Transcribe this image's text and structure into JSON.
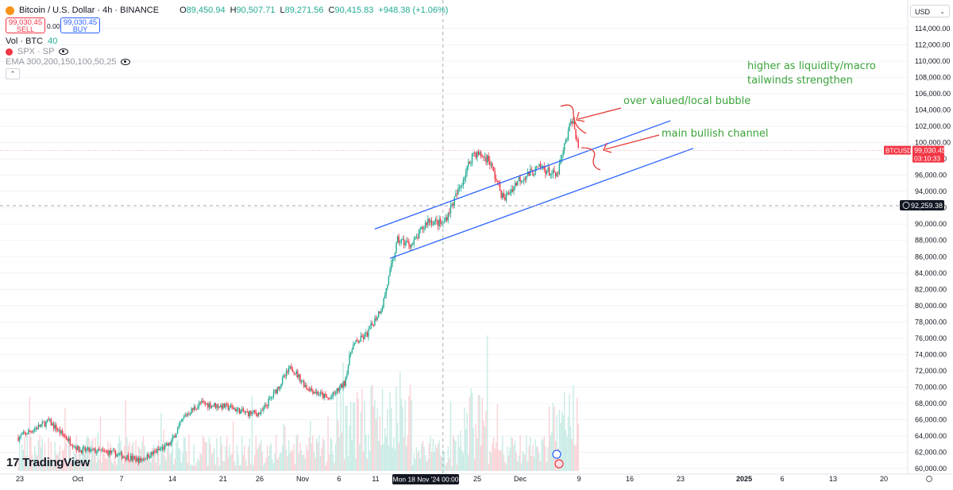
{
  "header": {
    "symbol_title": "Bitcoin / U.S. Dollar · 4h · BINANCE",
    "ohlc": {
      "o_label": "O",
      "o_value": "89,450.94",
      "h_label": "H",
      "h_value": "90,507.71",
      "l_label": "L",
      "l_value": "89,271.56",
      "c_label": "C",
      "c_value": "90,415.83",
      "change": "+948.38 (+1.06%)"
    },
    "sell_price": "99,030.45",
    "sell_label": "SELL",
    "spread": "0.00",
    "buy_price": "99,030.45",
    "buy_label": "BUY",
    "vol_label": "Vol · BTC",
    "vol_value": "40",
    "compare_label": "SPX · SP",
    "ema_label": "EMA 300,200,150,100,50,25"
  },
  "currency_select": "USD",
  "price_axis": {
    "ticks": [
      "114,000.00",
      "112,000.00",
      "110,000.00",
      "108,000.00",
      "106,000.00",
      "104,000.00",
      "102,000.00",
      "100,000.00",
      "98,000.00",
      "96,000.00",
      "94,000.00",
      "92,000.00",
      "90,000.00",
      "88,000.00",
      "86,000.00",
      "84,000.00",
      "82,000.00",
      "80,000.00",
      "78,000.00",
      "76,000.00",
      "74,000.00",
      "72,000.00",
      "70,000.00",
      "68,000.00",
      "66,000.00",
      "64,000.00",
      "62,000.00",
      "60,000.00"
    ],
    "last_symbol": "BTCUSD",
    "last_price": "99,030.45",
    "countdown": "03:10:33",
    "crosshair_price": "92,259.38"
  },
  "time_axis": {
    "ticks": [
      "23",
      "Oct",
      "7",
      "14",
      "21",
      "26",
      "Nov",
      "6",
      "11",
      "25",
      "Dec",
      "9",
      "16",
      "23",
      "2025",
      "6",
      "13",
      "20"
    ],
    "crosshair_label": "Mon 18 Nov '24   00:00"
  },
  "annotations": {
    "bubble_note": "over valued/local bubble",
    "channel_note": "main bullish channel",
    "macro_note_line1": "higher as liquidity/macro",
    "macro_note_line2": "tailwinds strengthen"
  },
  "logo_text": "TradingView",
  "colors": {
    "up": "#22ab94",
    "down": "#f23645",
    "channel": "#2962ff",
    "note": "#3aa33a",
    "arrow": "#e53935"
  },
  "chart_data": {
    "type": "candlestick",
    "title": "Bitcoin / U.S. Dollar · 4h · BINANCE",
    "ylim": [
      60000,
      115000
    ],
    "x_range": [
      "Sep 23 2024",
      "Jan 27 2025"
    ],
    "series": [
      {
        "name": "BTCUSD close (approximate)",
        "points": [
          [
            "Sep 23",
            63800
          ],
          [
            "Sep 27",
            65800
          ],
          [
            "Oct 1",
            62300
          ],
          [
            "Oct 5",
            62000
          ],
          [
            "Oct 9",
            61000
          ],
          [
            "Oct 13",
            63000
          ],
          [
            "Oct 15",
            66500
          ],
          [
            "Oct 17",
            68000
          ],
          [
            "Oct 21",
            67500
          ],
          [
            "Oct 23",
            66800
          ],
          [
            "Oct 25",
            66800
          ],
          [
            "Oct 29",
            72500
          ],
          [
            "Oct 31",
            70000
          ],
          [
            "Nov 3",
            68500
          ],
          [
            "Nov 5",
            70500
          ],
          [
            "Nov 6",
            75000
          ],
          [
            "Nov 8",
            76500
          ],
          [
            "Nov 10",
            80000
          ],
          [
            "Nov 12",
            88000
          ],
          [
            "Nov 14",
            87500
          ],
          [
            "Nov 16",
            90500
          ],
          [
            "Nov 18",
            90000
          ],
          [
            "Nov 20",
            94000
          ],
          [
            "Nov 22",
            98800
          ],
          [
            "Nov 24",
            98000
          ],
          [
            "Nov 26",
            93000
          ],
          [
            "Nov 28",
            95500
          ],
          [
            "Dec 1",
            97000
          ],
          [
            "Dec 3",
            95800
          ],
          [
            "Dec 5",
            103000
          ],
          [
            "Dec 6",
            99030
          ]
        ]
      }
    ],
    "channel": {
      "upper": [
        [
          "Nov 11",
          90000
        ],
        [
          "Dec 18",
          102500
        ]
      ],
      "lower": [
        [
          "Nov 11",
          86000
        ],
        [
          "Dec 18",
          99000
        ]
      ]
    },
    "last_price": 99030.45,
    "crosshair": {
      "date": "Mon 18 Nov '24 00:00",
      "price": 92259.38
    },
    "grid": true,
    "legend": "top-left"
  }
}
